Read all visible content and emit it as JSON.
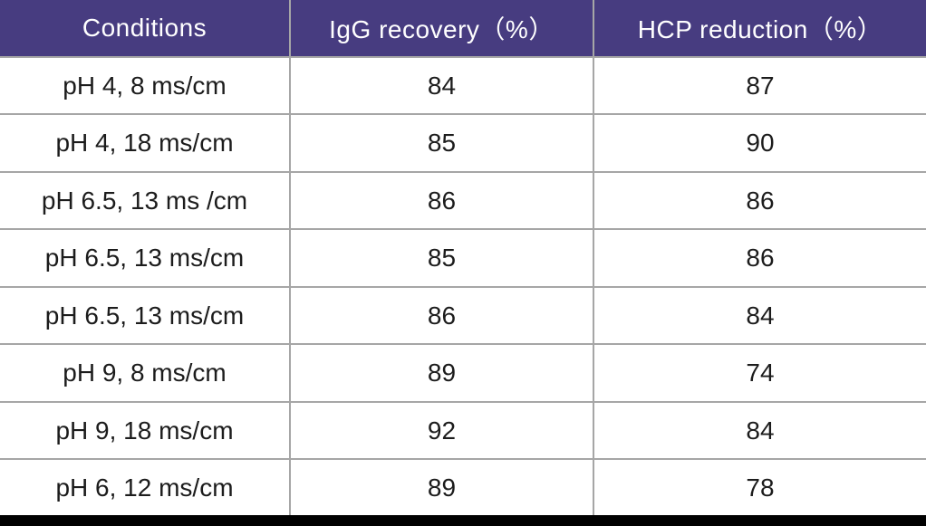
{
  "chart_data": {
    "type": "table",
    "columns": [
      "Conditions",
      "IgG recovery（%）",
      "HCP reduction（%）"
    ],
    "rows": [
      [
        "pH 4, 8 ms/cm",
        84,
        87
      ],
      [
        "pH 4, 18 ms/cm",
        85,
        90
      ],
      [
        "pH 6.5, 13 ms /cm",
        86,
        86
      ],
      [
        "pH 6.5, 13 ms/cm",
        85,
        86
      ],
      [
        "pH 6.5, 13 ms/cm",
        86,
        84
      ],
      [
        "pH 9, 8 ms/cm",
        89,
        74
      ],
      [
        "pH 9, 18 ms/cm",
        92,
        84
      ],
      [
        "pH 6, 12 ms/cm",
        89,
        78
      ]
    ]
  },
  "colors": {
    "header_bg": "#473c80",
    "header_text": "#ffffff",
    "body_text": "#1c1c1c",
    "border": "#a6a6a6",
    "bottom_bar": "#000000",
    "row_bg": "#ffffff"
  }
}
